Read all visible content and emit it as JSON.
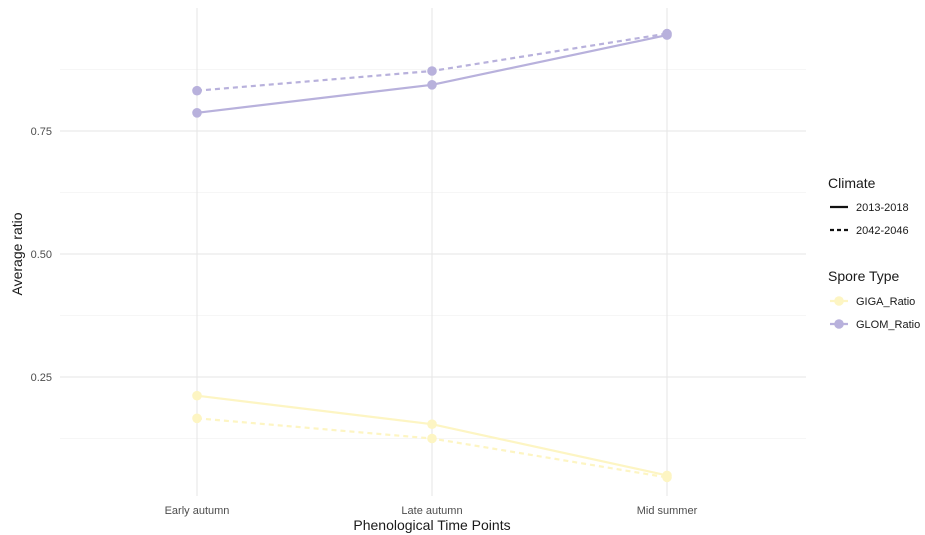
{
  "chart_data": {
    "type": "line",
    "xlabel": "Phenological Time Points",
    "ylabel": "Average ratio",
    "categories": [
      "Early autumn",
      "Late autumn",
      "Mid summer"
    ],
    "yticks": [
      "0.25",
      "0.50",
      "0.75"
    ],
    "ylim": [
      0.0,
      1.0
    ],
    "grid": true,
    "legend_position": "right",
    "legends": {
      "climate": {
        "title": "Climate",
        "entries": [
          {
            "label": "2013-2018",
            "linestyle": "solid"
          },
          {
            "label": "2042-2046",
            "linestyle": "dashed"
          }
        ]
      },
      "spore_type": {
        "title": "Spore Type",
        "entries": [
          {
            "label": "GIGA_Ratio",
            "color": "#fdf5c3"
          },
          {
            "label": "GLOM_Ratio",
            "color": "#b8b1dc"
          }
        ]
      }
    },
    "series": [
      {
        "name": "GLOM_Ratio",
        "climate": "2013-2018",
        "linestyle": "solid",
        "color": "#b8b1dc",
        "values": [
          0.787,
          0.844,
          0.945
        ]
      },
      {
        "name": "GLOM_Ratio",
        "climate": "2042-2046",
        "linestyle": "dashed",
        "color": "#b8b1dc",
        "values": [
          0.832,
          0.872,
          0.948
        ]
      },
      {
        "name": "GIGA_Ratio",
        "climate": "2013-2018",
        "linestyle": "solid",
        "color": "#fdf5c3",
        "values": [
          0.212,
          0.154,
          0.05
        ]
      },
      {
        "name": "GIGA_Ratio",
        "climate": "2042-2046",
        "linestyle": "dashed",
        "color": "#fdf5c3",
        "values": [
          0.166,
          0.125,
          0.046
        ]
      }
    ]
  }
}
